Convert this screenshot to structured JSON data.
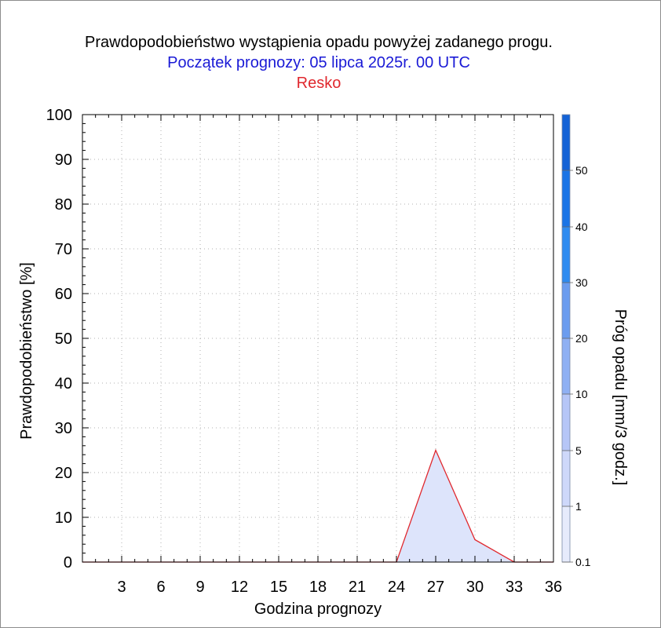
{
  "titles": {
    "line1": "Prawdopodobieństwo wystąpienia opadu powyżej zadanego progu.",
    "line2": "Początek prognozy: 05 lipca 2025r. 00 UTC",
    "line3": "Resko"
  },
  "chart_data": {
    "type": "area",
    "xlabel": "Godzina prognozy",
    "ylabel": "Prawdopodobieństwo [%]",
    "xlim": [
      0,
      36
    ],
    "ylim": [
      0,
      100
    ],
    "x_ticks": [
      3,
      6,
      9,
      12,
      15,
      18,
      21,
      24,
      27,
      30,
      33,
      36
    ],
    "y_ticks": [
      0,
      10,
      20,
      30,
      40,
      50,
      60,
      70,
      80,
      90,
      100
    ],
    "grid": true,
    "series": [
      {
        "color": "#e0282e",
        "fill": "#dde4fb",
        "x": [
          0,
          3,
          6,
          9,
          12,
          15,
          18,
          21,
          24,
          27,
          30,
          33,
          36
        ],
        "y": [
          0,
          0,
          0,
          0,
          0,
          0,
          0,
          0,
          0,
          25,
          5,
          0,
          0
        ]
      }
    ],
    "colorbar": {
      "label": "Próg opadu [mm/3 godz.]",
      "tick_labels": [
        "0.1",
        "1",
        "5",
        "10",
        "20",
        "30",
        "40",
        "50"
      ],
      "colors": [
        "#e6ebfc",
        "#ced8fa",
        "#b6c6f7",
        "#8fb0f3",
        "#6b9cef",
        "#2f8bf0",
        "#1a74e6",
        "#1462d6",
        "#0a48b4"
      ]
    }
  }
}
